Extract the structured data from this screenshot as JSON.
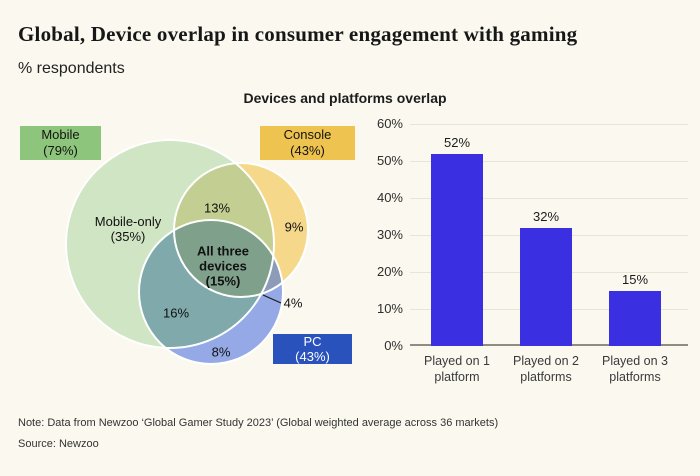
{
  "header": {
    "title": "Global, Device overlap in consumer engagement with gaming",
    "subtitle": "% respondents"
  },
  "chart_title": "Devices and platforms overlap",
  "venn": {
    "sets": [
      {
        "label": "Mobile",
        "value": "(79%)",
        "box_color": "#8dc57d"
      },
      {
        "label": "Console",
        "value": "(43%)",
        "box_color": "#eec34f"
      },
      {
        "label": "PC",
        "value": "(43%)",
        "box_color": "#2a52bd"
      }
    ],
    "regions": {
      "mobile_only_label": "Mobile-only",
      "mobile_only_value": "(35%)",
      "mobile_console": "13%",
      "console_only": "9%",
      "all_three_line1": "All three",
      "all_three_line2": "devices",
      "all_three_line3": "(15%)",
      "mobile_pc": "16%",
      "pc_only": "8%",
      "console_pc": "4%"
    }
  },
  "bar_chart": {
    "y_ticks": [
      "60%",
      "50%",
      "40%",
      "30%",
      "20%",
      "10%",
      "0%"
    ],
    "bars": [
      {
        "value_label": "52%",
        "category_line1": "Played on 1",
        "category_line2": "platform"
      },
      {
        "value_label": "32%",
        "category_line1": "Played on 2",
        "category_line2": "platforms"
      },
      {
        "value_label": "15%",
        "category_line1": "Played on 3",
        "category_line2": "platforms"
      }
    ]
  },
  "footer": {
    "note": "Note: Data from Newzoo ‘Global Gamer Study 2023’ (Global weighted average across 36 markets)",
    "source": "Source: Newzoo"
  },
  "colors": {
    "background": "#faf8ef",
    "bar": "#3b30e1",
    "venn_mobile_fill": "#cfe5c3",
    "venn_console_fill": "#f5d88a",
    "venn_pc_fill": "#94a9e6",
    "venn_mobile_console": "#c3cf92",
    "venn_mobile_pc": "#7fa9ab",
    "venn_console_pc": "#8c9cb8",
    "venn_all_three": "#7fa18c"
  },
  "chart_data": [
    {
      "type": "venn",
      "title": "Devices and platforms overlap",
      "sets": [
        {
          "name": "Mobile",
          "total_pct": 79
        },
        {
          "name": "Console",
          "total_pct": 43
        },
        {
          "name": "PC",
          "total_pct": 43
        }
      ],
      "regions": [
        {
          "name": "Mobile only",
          "pct": 35
        },
        {
          "name": "Mobile and Console only",
          "pct": 13
        },
        {
          "name": "Console only",
          "pct": 9
        },
        {
          "name": "All three devices",
          "pct": 15
        },
        {
          "name": "Mobile and PC only",
          "pct": 16
        },
        {
          "name": "PC only",
          "pct": 8
        },
        {
          "name": "Console and PC only",
          "pct": 4
        }
      ]
    },
    {
      "type": "bar",
      "title": "Devices and platforms overlap",
      "categories": [
        "Played on 1 platform",
        "Played on 2 platforms",
        "Played on 3 platforms"
      ],
      "values": [
        52,
        32,
        15
      ],
      "data_labels": [
        "52%",
        "32%",
        "15%"
      ],
      "xlabel": "",
      "ylabel": "% respondents",
      "ylim": [
        0,
        60
      ],
      "y_tick_step": 10,
      "grid": true,
      "legend": "none"
    }
  ]
}
